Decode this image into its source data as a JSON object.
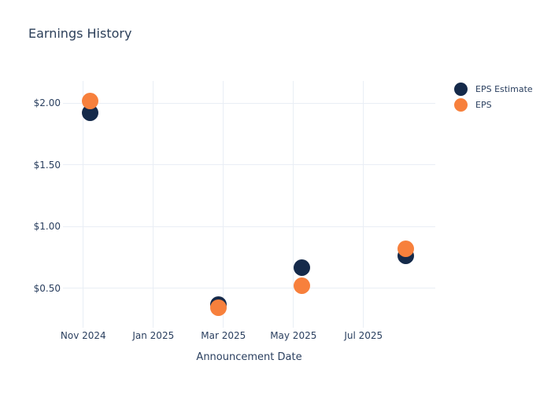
{
  "title": "Earnings History",
  "chart_data": {
    "type": "scatter",
    "title": "Earnings History",
    "xlabel": "Announcement Date",
    "ylabel": "",
    "grid": true,
    "legend_position": "right",
    "x_ticks": [
      {
        "label": "Nov 2024",
        "month_offset": 0
      },
      {
        "label": "Jan 2025",
        "month_offset": 2
      },
      {
        "label": "Mar 2025",
        "month_offset": 4
      },
      {
        "label": "May 2025",
        "month_offset": 6
      },
      {
        "label": "Jul 2025",
        "month_offset": 8
      }
    ],
    "y_ticks": [
      {
        "label": "$2.00",
        "value": 2.0
      },
      {
        "label": "$1.50",
        "value": 1.5
      },
      {
        "label": "$1.00",
        "value": 1.0
      },
      {
        "label": "$0.50",
        "value": 0.5
      }
    ],
    "ylim": [
      0.18,
      2.18
    ],
    "xlim_month_offsets": [
      -0.58,
      10.05
    ],
    "series": [
      {
        "name": "EPS Estimate",
        "color": "#152a4a",
        "points": [
          {
            "date": "2024-11-07",
            "value": 1.92
          },
          {
            "date": "2025-02-27",
            "value": 0.37
          },
          {
            "date": "2025-05-08",
            "value": 0.67
          },
          {
            "date": "2025-08-07",
            "value": 0.76
          }
        ]
      },
      {
        "name": "EPS",
        "color": "#f7803c",
        "points": [
          {
            "date": "2024-11-07",
            "value": 2.02
          },
          {
            "date": "2025-02-27",
            "value": 0.34
          },
          {
            "date": "2025-05-08",
            "value": 0.52
          },
          {
            "date": "2025-08-07",
            "value": 0.82
          }
        ]
      }
    ],
    "colors": {
      "text": "#2a3f5f",
      "grid": "#e9eef5",
      "eps_estimate": "#152a4a",
      "eps": "#f7803c"
    }
  }
}
